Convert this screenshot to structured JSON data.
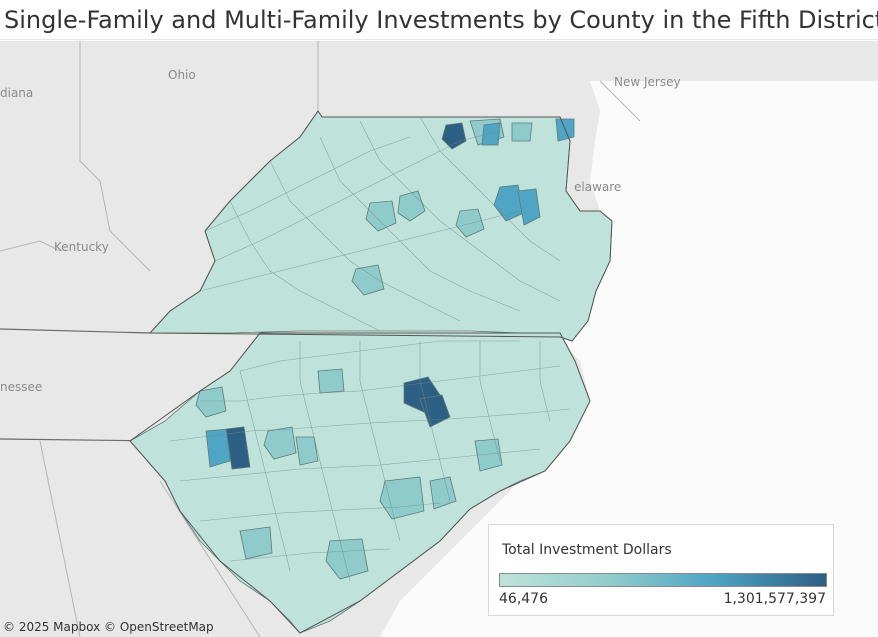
{
  "title": "Single-Family and Multi-Family Investments by County in the Fifth District",
  "map": {
    "place_labels": {
      "ohio": "Ohio",
      "indiana": "diana",
      "kentucky": "Kentucky",
      "tennessee": "nessee",
      "new_jersey": "New Jersey",
      "delaware": "elaware"
    },
    "colors": {
      "background": "#e6e6e6",
      "water": "#ffffff",
      "county_low": "#bfe3da",
      "county_mid": "#8fcbcb",
      "county_high": "#4ea5c4",
      "county_max": "#2d5f85",
      "county_border": "#6f6f6f"
    }
  },
  "legend": {
    "title": "Total Investment Dollars",
    "min_label": "46,476",
    "max_label": "1,301,577,397"
  },
  "attribution": "© 2025 Mapbox © OpenStreetMap"
}
